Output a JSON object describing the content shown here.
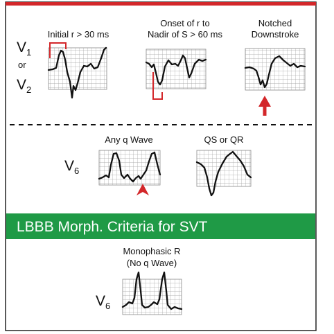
{
  "colors": {
    "accent_red": "#d3272a",
    "banner_green": "#1f9a46",
    "banner_text": "#ffffff",
    "grid_line": "#9a9a9a",
    "trace": "#111111"
  },
  "leads": {
    "v1": "V",
    "v1_sub": "1",
    "or": "or",
    "v2": "V",
    "v2_sub": "2",
    "v6_top": "V",
    "v6_top_sub": "6",
    "v6_bottom": "V",
    "v6_bottom_sub": "6"
  },
  "criteria": {
    "initial_r": "Initial r > 30 ms",
    "onset_line1": "Onset of r to",
    "onset_line2": "Nadir of S > 60 ms",
    "notched_line1": "Notched",
    "notched_line2": "Downstroke",
    "any_q": "Any q Wave",
    "qs_qr": "QS or QR"
  },
  "banner": {
    "title": "LBBB Morph. Criteria for SVT"
  },
  "svt": {
    "line1": "Monophasic R",
    "line2": "(No q Wave)"
  }
}
